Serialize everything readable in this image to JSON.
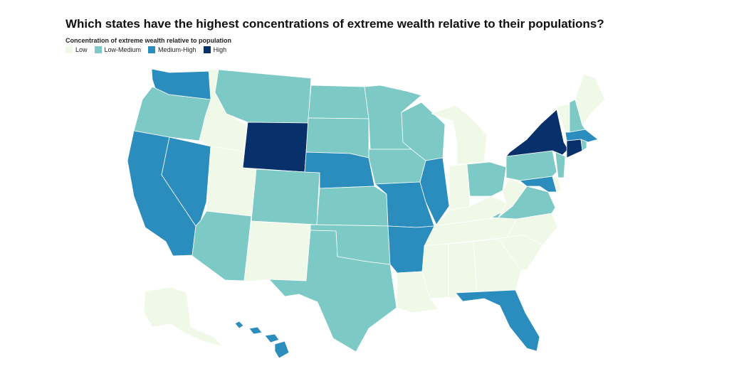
{
  "title": "Which states have the highest concentrations of extreme wealth relative to their populations?",
  "legend": {
    "title": "Concentration of extreme wealth relative to population",
    "items": [
      {
        "label": "Low",
        "color": "#f0f8e8"
      },
      {
        "label": "Low-Medium",
        "color": "#7cc9c5"
      },
      {
        "label": "Medium-High",
        "color": "#2b8cbe"
      },
      {
        "label": "High",
        "color": "#08306b"
      }
    ]
  },
  "states": {
    "WA": "Medium-High",
    "OR": "Low-Medium",
    "CA": "Medium-High",
    "NV": "Medium-High",
    "ID": "Low",
    "MT": "Low-Medium",
    "WY": "High",
    "UT": "Low",
    "AZ": "Low-Medium",
    "CO": "Low-Medium",
    "NM": "Low",
    "ND": "Low-Medium",
    "SD": "Low-Medium",
    "NE": "Medium-High",
    "KS": "Low-Medium",
    "OK": "Low-Medium",
    "TX": "Low-Medium",
    "MN": "Low-Medium",
    "IA": "Low-Medium",
    "MO": "Medium-High",
    "AR": "Medium-High",
    "LA": "Low",
    "WI": "Low-Medium",
    "IL": "Medium-High",
    "MI": "Low",
    "IN": "Low",
    "OH": "Low-Medium",
    "KY": "Low",
    "TN": "Low",
    "MS": "Low",
    "AL": "Low",
    "GA": "Low",
    "FL": "Medium-High",
    "SC": "Low",
    "NC": "Low",
    "VA": "Low-Medium",
    "WV": "Low",
    "MD": "Medium-High",
    "DE": "Low",
    "PA": "Low-Medium",
    "NJ": "Low-Medium",
    "NY": "High",
    "CT": "High",
    "RI": "Low-Medium",
    "MA": "Medium-High",
    "VT": "Low",
    "NH": "Low-Medium",
    "ME": "Low",
    "AK": "Low",
    "HI": "Medium-High"
  }
}
